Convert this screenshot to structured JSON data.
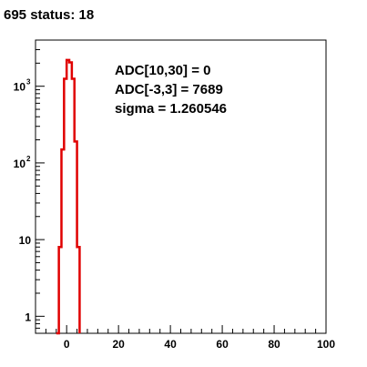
{
  "canvas_title": "695 status: 18",
  "chart_data": {
    "type": "bar",
    "histogram_style": "step",
    "log_y": true,
    "xlim": [
      -12,
      100
    ],
    "ylim": [
      0.6,
      4000
    ],
    "x_ticks": [
      0,
      20,
      40,
      60,
      80,
      100
    ],
    "y_ticks": [
      {
        "value": 1,
        "base": "1",
        "exp": ""
      },
      {
        "value": 10,
        "base": "10",
        "exp": ""
      },
      {
        "value": 100,
        "base": "10",
        "exp": "2"
      },
      {
        "value": 1000,
        "base": "10",
        "exp": "3"
      }
    ],
    "bin_edges": [
      -4,
      -3,
      -2,
      -1,
      0,
      1,
      2,
      3,
      4,
      5
    ],
    "counts": [
      0.5,
      8,
      150,
      1250,
      2200,
      2050,
      1250,
      190,
      8
    ],
    "line_color": "#e00000",
    "annotations": [
      "ADC[10,30] = 0",
      "ADC[-3,3] = 7689",
      "sigma = 1.260546"
    ]
  }
}
